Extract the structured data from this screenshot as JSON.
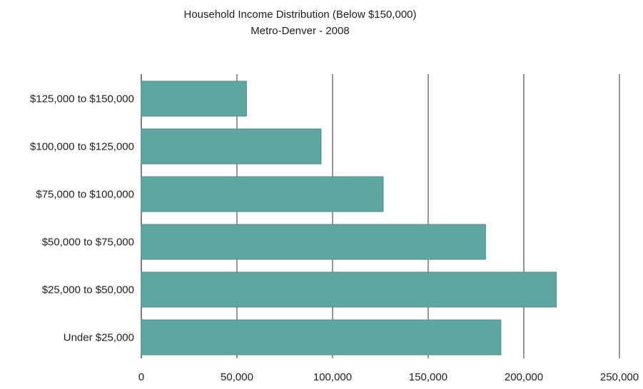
{
  "chart_data": {
    "type": "bar",
    "orientation": "horizontal",
    "title": "Household Income Distribution (Below $150,000)",
    "subtitle": "Metro-Denver - 2008",
    "categories": [
      "$125,000 to $150,000",
      "$100,000 to $125,000",
      "$75,000 to $100,000",
      "$50,000 to $75,000",
      "$25,000 to $50,000",
      "Under $25,000"
    ],
    "values": [
      55000,
      94000,
      126500,
      180000,
      217000,
      188000
    ],
    "xlim": [
      0,
      250000
    ],
    "xticks": [
      0,
      50000,
      100000,
      150000,
      200000,
      250000
    ],
    "xtick_labels": [
      "0",
      "50,000",
      "100,000",
      "150,000",
      "200,000",
      "250,000"
    ],
    "grid": "vertical",
    "legend": "none",
    "bar_color": "#5fa5a2",
    "bar_edge_color": "#4d8f8c",
    "grid_color": "#555555"
  }
}
